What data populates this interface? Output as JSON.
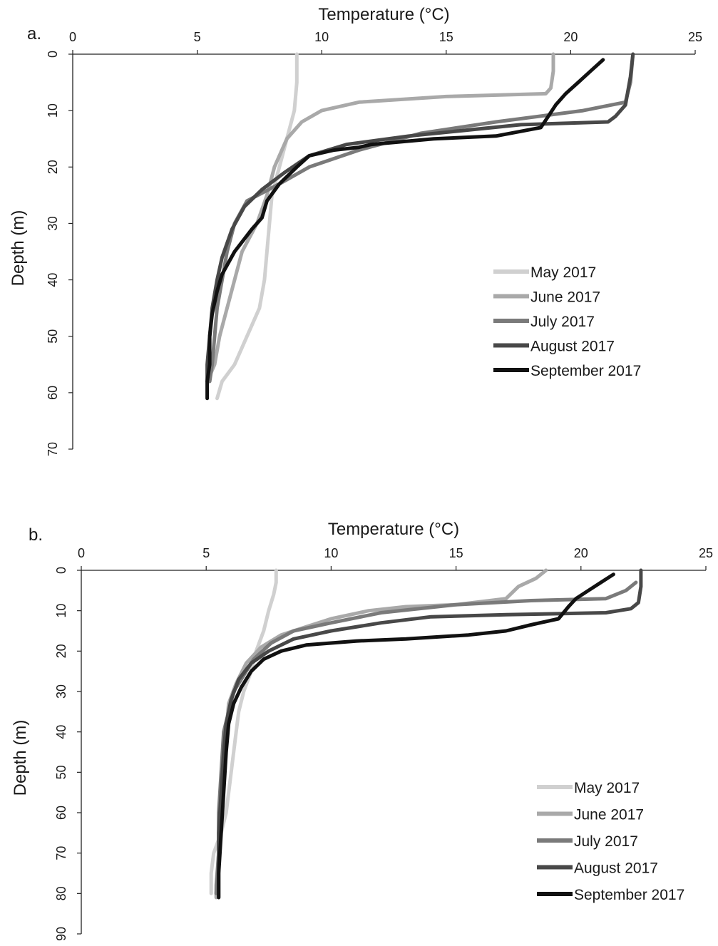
{
  "chart_data": [
    {
      "type": "line",
      "panel_label": "a.",
      "xlabel": "Temperature (°C)",
      "ylabel": "Depth (m)",
      "xlim": [
        0,
        25
      ],
      "ylim": [
        0,
        70
      ],
      "y_inverted": true,
      "x_axis_position": "top",
      "xticks": [
        0,
        5,
        10,
        15,
        20,
        25
      ],
      "yticks": [
        0,
        10,
        20,
        30,
        40,
        50,
        60,
        70
      ],
      "grid": false,
      "legend_position": "right",
      "series": [
        {
          "name": "May 2017",
          "color": "#d0d0d0",
          "points": [
            [
              9.0,
              0
            ],
            [
              9.0,
              5
            ],
            [
              8.9,
              10
            ],
            [
              8.6,
              15
            ],
            [
              8.3,
              20
            ],
            [
              8.0,
              25
            ],
            [
              7.9,
              30
            ],
            [
              7.8,
              35
            ],
            [
              7.7,
              40
            ],
            [
              7.5,
              45
            ],
            [
              7.0,
              50
            ],
            [
              6.5,
              55
            ],
            [
              6.0,
              58
            ],
            [
              5.8,
              61
            ]
          ]
        },
        {
          "name": "June 2017",
          "color": "#a9a9a9",
          "points": [
            [
              19.3,
              0
            ],
            [
              19.3,
              3
            ],
            [
              19.2,
              6
            ],
            [
              19.0,
              7
            ],
            [
              15.0,
              7.5
            ],
            [
              11.5,
              8.5
            ],
            [
              10.0,
              10
            ],
            [
              9.2,
              12
            ],
            [
              8.6,
              15
            ],
            [
              8.1,
              20
            ],
            [
              7.8,
              25
            ],
            [
              7.4,
              30
            ],
            [
              6.8,
              35
            ],
            [
              6.5,
              40
            ],
            [
              6.2,
              45
            ],
            [
              5.9,
              50
            ],
            [
              5.7,
              55
            ],
            [
              5.5,
              57
            ]
          ]
        },
        {
          "name": "July 2017",
          "color": "#7a7a7a",
          "points": [
            [
              22.5,
              0
            ],
            [
              22.4,
              5
            ],
            [
              22.2,
              8.5
            ],
            [
              20.5,
              10
            ],
            [
              17.0,
              12
            ],
            [
              14.0,
              14
            ],
            [
              11.5,
              17
            ],
            [
              9.5,
              20
            ],
            [
              8.3,
              23
            ],
            [
              7.0,
              26
            ],
            [
              6.5,
              30
            ],
            [
              6.2,
              35
            ],
            [
              6.0,
              40
            ],
            [
              5.8,
              45
            ],
            [
              5.7,
              50
            ],
            [
              5.6,
              55
            ],
            [
              5.5,
              58
            ]
          ]
        },
        {
          "name": "August 2017",
          "color": "#484848",
          "points": [
            [
              22.5,
              0
            ],
            [
              22.4,
              4
            ],
            [
              22.2,
              9
            ],
            [
              21.8,
              11
            ],
            [
              21.5,
              12
            ],
            [
              18.0,
              12.5
            ],
            [
              13.5,
              14.5
            ],
            [
              11.0,
              16
            ],
            [
              9.5,
              18
            ],
            [
              8.5,
              21
            ],
            [
              7.6,
              24
            ],
            [
              6.9,
              27
            ],
            [
              6.4,
              31
            ],
            [
              6.0,
              36
            ],
            [
              5.8,
              40
            ],
            [
              5.6,
              45
            ],
            [
              5.5,
              50
            ],
            [
              5.4,
              55
            ],
            [
              5.4,
              58
            ]
          ]
        },
        {
          "name": "September 2017",
          "color": "#111111",
          "points": [
            [
              21.3,
              1
            ],
            [
              20.8,
              3
            ],
            [
              20.3,
              5
            ],
            [
              19.8,
              7
            ],
            [
              19.4,
              9
            ],
            [
              19.1,
              11
            ],
            [
              18.8,
              13
            ],
            [
              17.0,
              14.5
            ],
            [
              14.5,
              15
            ],
            [
              12.0,
              16
            ],
            [
              11.5,
              16.5
            ],
            [
              10.5,
              17
            ],
            [
              9.5,
              18
            ],
            [
              9.0,
              20
            ],
            [
              8.3,
              23
            ],
            [
              7.8,
              26
            ],
            [
              7.6,
              29
            ],
            [
              7.2,
              31
            ],
            [
              6.5,
              35
            ],
            [
              6.0,
              39
            ],
            [
              5.8,
              42
            ],
            [
              5.6,
              46
            ],
            [
              5.5,
              50
            ],
            [
              5.5,
              55
            ],
            [
              5.4,
              58
            ],
            [
              5.4,
              61
            ]
          ]
        }
      ]
    },
    {
      "type": "line",
      "panel_label": "b.",
      "xlabel": "Temperature (°C)",
      "ylabel": "Depth (m)",
      "xlim": [
        0,
        25
      ],
      "ylim": [
        0,
        90
      ],
      "y_inverted": true,
      "x_axis_position": "top",
      "xticks": [
        0,
        5,
        10,
        15,
        20,
        25
      ],
      "yticks": [
        0,
        10,
        20,
        30,
        40,
        50,
        60,
        70,
        80,
        90
      ],
      "grid": false,
      "legend_position": "right",
      "series": [
        {
          "name": "May 2017",
          "color": "#d0d0d0",
          "points": [
            [
              7.8,
              0
            ],
            [
              7.8,
              3
            ],
            [
              7.7,
              6
            ],
            [
              7.5,
              10
            ],
            [
              7.3,
              15
            ],
            [
              7.0,
              20
            ],
            [
              6.8,
              25
            ],
            [
              6.5,
              30
            ],
            [
              6.3,
              35
            ],
            [
              6.2,
              40
            ],
            [
              6.1,
              45
            ],
            [
              6.0,
              50
            ],
            [
              5.9,
              55
            ],
            [
              5.8,
              60
            ],
            [
              5.6,
              65
            ],
            [
              5.3,
              70
            ],
            [
              5.2,
              75
            ],
            [
              5.2,
              80
            ]
          ]
        },
        {
          "name": "June 2017",
          "color": "#a9a9a9",
          "points": [
            [
              18.6,
              0
            ],
            [
              18.2,
              2
            ],
            [
              17.5,
              4
            ],
            [
              17.0,
              7
            ],
            [
              15.0,
              8.5
            ],
            [
              13.0,
              9
            ],
            [
              11.5,
              10
            ],
            [
              10.0,
              12
            ],
            [
              9.0,
              14
            ],
            [
              8.0,
              16
            ],
            [
              7.2,
              19
            ],
            [
              6.6,
              23
            ],
            [
              6.2,
              28
            ],
            [
              5.9,
              33
            ],
            [
              5.8,
              40
            ],
            [
              5.7,
              50
            ],
            [
              5.6,
              60
            ],
            [
              5.5,
              70
            ],
            [
              5.4,
              78
            ],
            [
              5.4,
              81
            ]
          ]
        },
        {
          "name": "July 2017",
          "color": "#7a7a7a",
          "points": [
            [
              22.2,
              3
            ],
            [
              21.8,
              5
            ],
            [
              21.0,
              7
            ],
            [
              18.0,
              7.5
            ],
            [
              15.0,
              8.5
            ],
            [
              12.0,
              10.5
            ],
            [
              10.0,
              13
            ],
            [
              8.5,
              15
            ],
            [
              7.6,
              18
            ],
            [
              6.9,
              22
            ],
            [
              6.5,
              26
            ],
            [
              6.1,
              30
            ],
            [
              5.9,
              35
            ],
            [
              5.7,
              40
            ],
            [
              5.6,
              50
            ],
            [
              5.5,
              60
            ],
            [
              5.5,
              70
            ],
            [
              5.4,
              80
            ]
          ]
        },
        {
          "name": "August 2017",
          "color": "#484848",
          "points": [
            [
              22.4,
              0
            ],
            [
              22.4,
              4
            ],
            [
              22.3,
              8
            ],
            [
              22.0,
              9.5
            ],
            [
              21.0,
              10.5
            ],
            [
              17.0,
              11
            ],
            [
              14.0,
              11.5
            ],
            [
              12.0,
              13
            ],
            [
              10.0,
              15
            ],
            [
              8.5,
              17
            ],
            [
              7.5,
              20
            ],
            [
              6.8,
              23
            ],
            [
              6.3,
              27
            ],
            [
              6.0,
              32
            ],
            [
              5.8,
              38
            ],
            [
              5.7,
              45
            ],
            [
              5.6,
              55
            ],
            [
              5.5,
              65
            ],
            [
              5.5,
              75
            ],
            [
              5.5,
              81
            ]
          ]
        },
        {
          "name": "September 2017",
          "color": "#111111",
          "points": [
            [
              21.3,
              1
            ],
            [
              20.8,
              3
            ],
            [
              20.3,
              5
            ],
            [
              19.8,
              7
            ],
            [
              19.5,
              9
            ],
            [
              19.1,
              12
            ],
            [
              18.0,
              13.5
            ],
            [
              17.0,
              15
            ],
            [
              15.5,
              16
            ],
            [
              13.0,
              17
            ],
            [
              11.0,
              17.5
            ],
            [
              10.0,
              18
            ],
            [
              9.0,
              18.5
            ],
            [
              8.0,
              20
            ],
            [
              7.3,
              22
            ],
            [
              6.8,
              25
            ],
            [
              6.4,
              29
            ],
            [
              6.1,
              33
            ],
            [
              5.9,
              38
            ],
            [
              5.8,
              45
            ],
            [
              5.7,
              55
            ],
            [
              5.6,
              65
            ],
            [
              5.5,
              75
            ],
            [
              5.5,
              81
            ]
          ]
        }
      ]
    }
  ]
}
